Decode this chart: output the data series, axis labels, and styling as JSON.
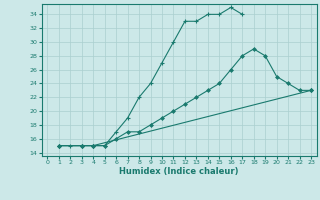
{
  "xlabel": "Humidex (Indice chaleur)",
  "bg_color": "#cce8e8",
  "line_color": "#1a7a6e",
  "grid_color": "#aacfcf",
  "xlim": [
    -0.5,
    23.5
  ],
  "ylim": [
    13.5,
    35.5
  ],
  "xticks": [
    0,
    1,
    2,
    3,
    4,
    5,
    6,
    7,
    8,
    9,
    10,
    11,
    12,
    13,
    14,
    15,
    16,
    17,
    18,
    19,
    20,
    21,
    22,
    23
  ],
  "yticks": [
    14,
    16,
    18,
    20,
    22,
    24,
    26,
    28,
    30,
    32,
    34
  ],
  "line1_x": [
    1,
    2,
    3,
    4,
    5,
    6,
    7,
    8,
    9,
    10,
    11,
    12,
    13,
    14,
    15,
    16,
    17
  ],
  "line1_y": [
    15,
    15,
    15,
    15,
    15,
    17,
    19,
    22,
    24,
    27,
    30,
    33,
    33,
    34,
    34,
    35,
    34
  ],
  "line2_x": [
    1,
    3,
    4,
    5,
    6,
    7,
    8,
    9,
    10,
    11,
    12,
    13,
    14,
    15,
    16,
    17,
    18,
    19,
    20,
    21,
    22,
    23
  ],
  "line2_y": [
    15,
    15,
    15,
    15,
    16,
    17,
    17,
    18,
    19,
    20,
    21,
    22,
    23,
    24,
    26,
    28,
    29,
    28,
    25,
    24,
    23,
    23
  ],
  "line3_x": [
    1,
    3,
    4,
    23
  ],
  "line3_y": [
    15,
    15,
    15,
    23
  ]
}
